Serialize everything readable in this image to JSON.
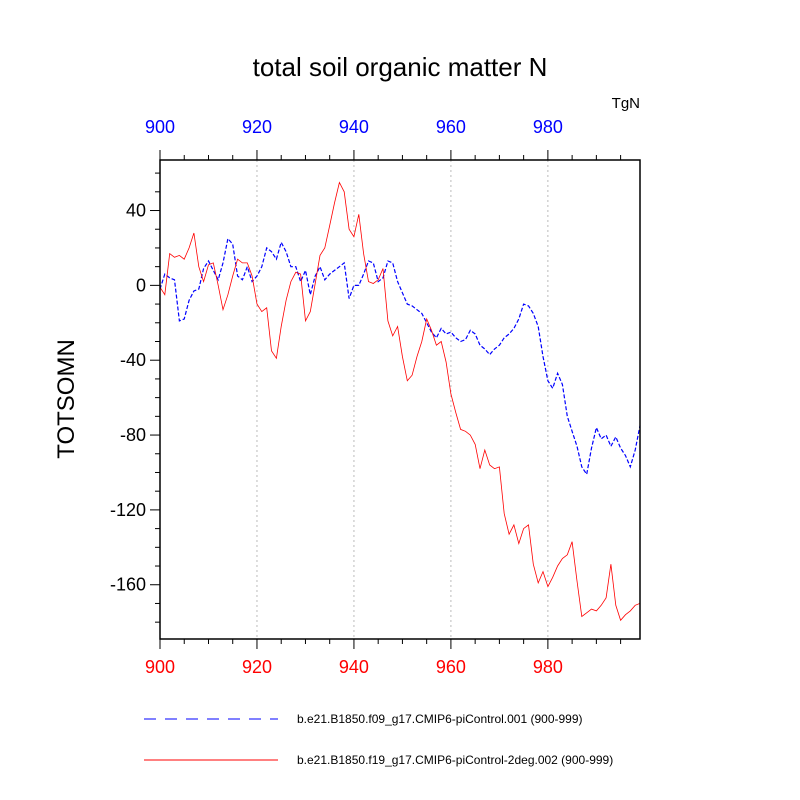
{
  "chart_data": {
    "type": "line",
    "title": "total soil organic matter N",
    "units": "TgN",
    "ylabel": "TOTSOMN",
    "xlabel": "",
    "xlim": [
      900,
      999
    ],
    "ylim": [
      -189,
      67
    ],
    "x_ticks": [
      900,
      920,
      940,
      960,
      980
    ],
    "y_ticks": [
      40,
      0,
      -40,
      -80,
      -120,
      -160
    ],
    "grid": "vertical dotted at x ticks",
    "top_axis_color": "#0000ff",
    "bottom_axis_color": "#ff0000",
    "series": [
      {
        "name": "b.e21.B1850.f09_g17.CMIP6-piControl.001 (900-999)",
        "color": "#0000ff",
        "dash": "dashed",
        "x_start": 900,
        "values": [
          -2,
          6,
          4,
          3,
          -19,
          -18,
          -8,
          -3,
          -2,
          9,
          13,
          8,
          3,
          12,
          25,
          22,
          5,
          3,
          10,
          2,
          5,
          10,
          20,
          18,
          14,
          23,
          18,
          10,
          10,
          2,
          8,
          -5,
          5,
          10,
          3,
          6,
          8,
          10,
          12,
          -7,
          0,
          0,
          6,
          13,
          12,
          2,
          4,
          13,
          12,
          2,
          -4,
          -10,
          -11,
          -13,
          -15,
          -20,
          -25,
          -28,
          -23,
          -26,
          -25,
          -28,
          -30,
          -29,
          -24,
          -26,
          -32,
          -34,
          -37,
          -34,
          -32,
          -28,
          -26,
          -23,
          -18,
          -10,
          -11,
          -15,
          -22,
          -38,
          -51,
          -55,
          -47,
          -53,
          -70,
          -78,
          -86,
          -97,
          -101,
          -87,
          -76,
          -82,
          -80,
          -86,
          -81,
          -87,
          -91,
          -97,
          -88,
          -75
        ]
      },
      {
        "name": "b.e21.B1850.f19_g17.CMIP6-piControl-2deg.002 (900-999)",
        "color": "#ff0000",
        "dash": "solid",
        "x_start": 900,
        "values": [
          -1,
          -5,
          17,
          15,
          16,
          14,
          20,
          28,
          10,
          2,
          11,
          12,
          0,
          -13,
          -5,
          5,
          14,
          12,
          12,
          5,
          -10,
          -14,
          -12,
          -35,
          -39,
          -22,
          -8,
          2,
          7,
          6,
          -19,
          -14,
          1,
          16,
          20,
          32,
          44,
          55,
          50,
          30,
          26,
          38,
          17,
          2,
          1,
          3,
          9,
          -19,
          -27,
          -22,
          -38,
          -51,
          -48,
          -38,
          -30,
          -18,
          -24,
          -32,
          -30,
          -41,
          -58,
          -68,
          -77,
          -78,
          -80,
          -85,
          -98,
          -88,
          -96,
          -98,
          -97,
          -122,
          -133,
          -128,
          -138,
          -130,
          -128,
          -149,
          -159,
          -153,
          -161,
          -156,
          -150,
          -146,
          -144,
          -137,
          -158,
          -177,
          -175,
          -173,
          -174,
          -171,
          -167,
          -149,
          -171,
          -179,
          -176,
          -174,
          -171,
          -170
        ]
      }
    ],
    "legend": "bottom",
    "legend_entries": [
      "b.e21.B1850.f09_g17.CMIP6-piControl.001 (900-999)",
      "b.e21.B1850.f19_g17.CMIP6-piControl-2deg.002 (900-999)"
    ]
  }
}
